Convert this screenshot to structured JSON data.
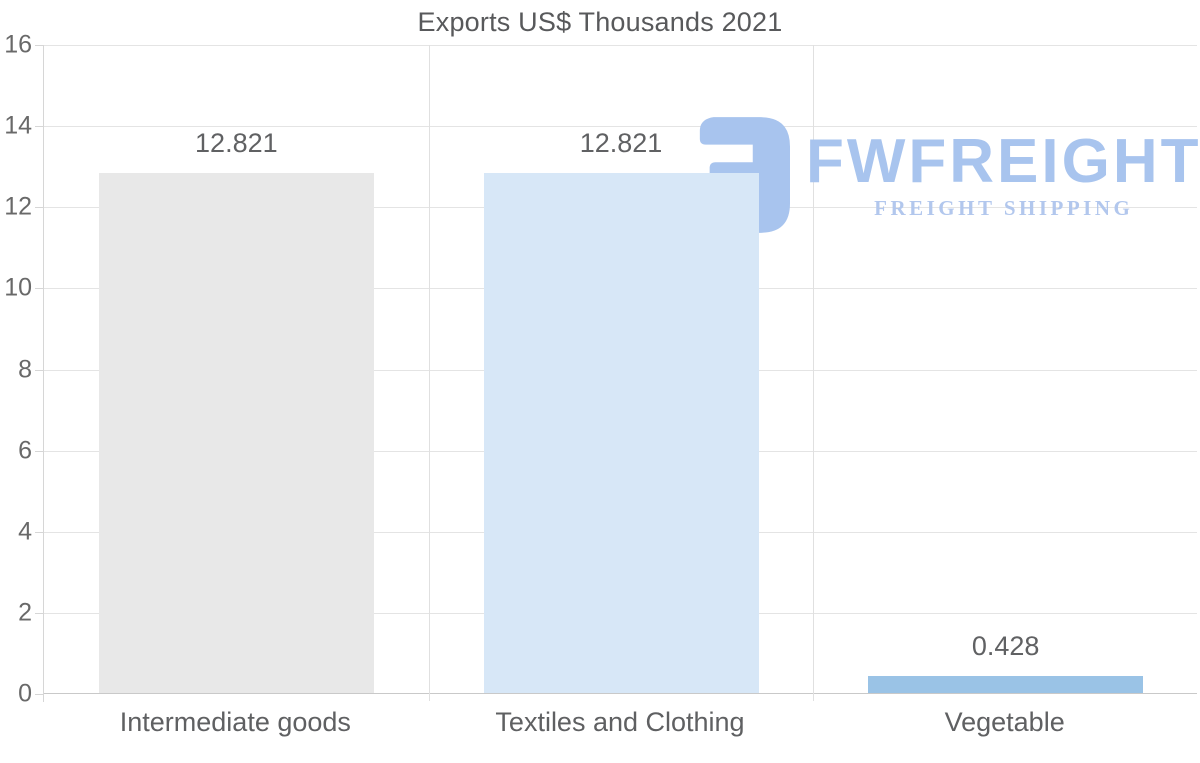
{
  "title": "Exports US$ Thousands 2021",
  "watermark": {
    "brand": "FWFREIGHT",
    "tagline": "FREIGHT SHIPPING",
    "icon": "fwfreight-logo-icon",
    "brand_color": "#a8c4ee",
    "tagline_color": "#b2c7ed"
  },
  "chart_data": {
    "type": "bar",
    "title": "Exports US$ Thousands 2021",
    "categories": [
      "Intermediate goods",
      "Textiles and Clothing",
      "Vegetable"
    ],
    "values": [
      12.821,
      12.821,
      0.428
    ],
    "value_labels": [
      "12.821",
      "12.821",
      "0.428"
    ],
    "bar_colors": [
      "#e8e8e8",
      "#d7e7f7",
      "#9ac3e6"
    ],
    "xlabel": "",
    "ylabel": "",
    "ylim": [
      0,
      16
    ],
    "yticks": [
      0,
      2,
      4,
      6,
      8,
      10,
      12,
      14,
      16
    ],
    "grid": "horizontal gridlines at y ticks, vertical category separators",
    "legend_position": "none",
    "text_color": "#5f6062",
    "gridline_color": "#e4e4e4"
  }
}
